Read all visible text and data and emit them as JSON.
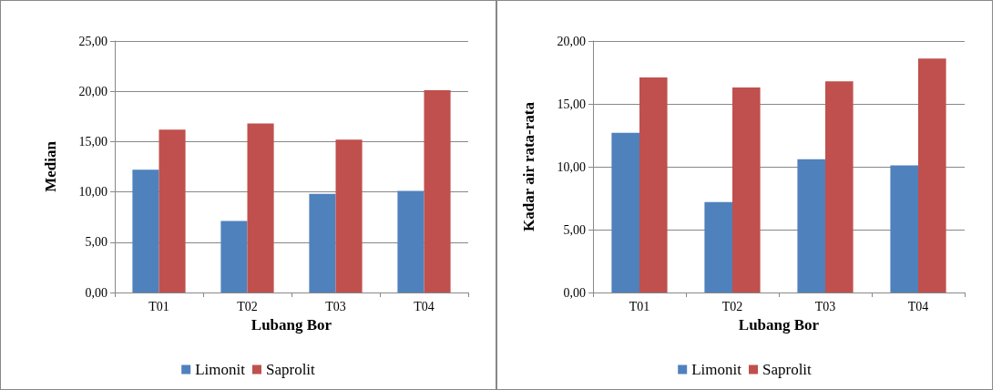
{
  "chart_data": [
    {
      "type": "bar",
      "categories": [
        "T01",
        "T02",
        "T03",
        "T04"
      ],
      "xlabel": "Lubang Bor",
      "ylabel": "Median",
      "series": [
        {
          "name": "Limonit",
          "color": "#4f81bd",
          "values": [
            12.2,
            7.1,
            9.8,
            10.1
          ]
        },
        {
          "name": "Saprolit",
          "color": "#c0504d",
          "values": [
            16.2,
            16.8,
            15.2,
            20.1
          ]
        }
      ],
      "ylim": [
        0,
        25
      ],
      "yticks": [
        {
          "value": 0,
          "label": "0,00"
        },
        {
          "value": 5,
          "label": "5,00"
        },
        {
          "value": 10,
          "label": "10,00"
        },
        {
          "value": 15,
          "label": "15,00"
        },
        {
          "value": 20,
          "label": "20,00"
        },
        {
          "value": 25,
          "label": "25,00"
        }
      ],
      "grid": "y",
      "legend": "bottom"
    },
    {
      "type": "bar",
      "categories": [
        "T01",
        "T02",
        "T03",
        "T04"
      ],
      "xlabel": "Lubang Bor",
      "ylabel": "Kadar air rata-rata",
      "series": [
        {
          "name": "Limonit",
          "color": "#4f81bd",
          "values": [
            12.7,
            7.2,
            10.6,
            10.1
          ]
        },
        {
          "name": "Saprolit",
          "color": "#c0504d",
          "values": [
            17.1,
            16.3,
            16.8,
            18.6
          ]
        }
      ],
      "ylim": [
        0,
        20
      ],
      "yticks": [
        {
          "value": 0,
          "label": "0,00"
        },
        {
          "value": 5,
          "label": "5,00"
        },
        {
          "value": 10,
          "label": "10,00"
        },
        {
          "value": 15,
          "label": "15,00"
        },
        {
          "value": 20,
          "label": "20,00"
        }
      ],
      "grid": "y",
      "legend": "bottom"
    }
  ]
}
